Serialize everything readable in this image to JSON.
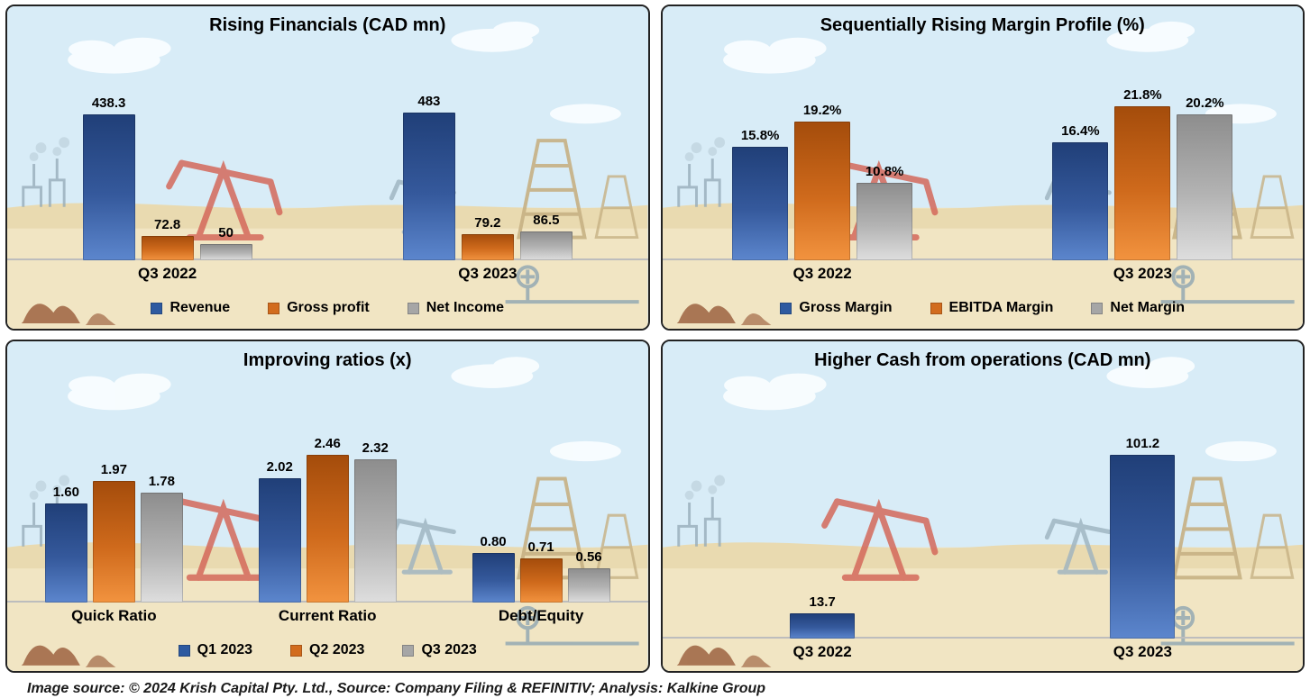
{
  "footer": {
    "text": "Image source: © 2024 Krish Capital Pty. Ltd., Source: Company Filing & REFINITIV; Analysis: Kalkine Group"
  },
  "palette": {
    "blue": {
      "top": "#203f78",
      "mid": "#35599c",
      "bottom": "#5c86cd",
      "legend": "#2e5aa0"
    },
    "orange": {
      "top": "#a44c0b",
      "mid": "#cf6a1c",
      "bottom": "#f2933f",
      "legend": "#d26c1e"
    },
    "gray": {
      "top": "#8d8d8d",
      "mid": "#b3b3b3",
      "bottom": "#dedede",
      "legend": "#a6a6a6"
    }
  },
  "chart_data": [
    {
      "id": "rising-financials",
      "type": "bar",
      "title": "Rising Financials (CAD mn)",
      "categories": [
        "Q3 2022",
        "Q3 2023"
      ],
      "series": [
        {
          "name": "Revenue",
          "color": "blue",
          "values": [
            438.3,
            483
          ],
          "labels": [
            "438.3",
            "483"
          ]
        },
        {
          "name": "Gross profit",
          "color": "orange",
          "values": [
            72.8,
            79.2
          ],
          "labels": [
            "72.8",
            "79.2"
          ]
        },
        {
          "name": "Net Income",
          "color": "gray",
          "values": [
            50,
            86.5
          ],
          "labels": [
            "50",
            "86.5"
          ]
        }
      ],
      "ylim": [
        0,
        500
      ],
      "grid": false,
      "legend_position": "bottom"
    },
    {
      "id": "margin-profile",
      "type": "bar",
      "title": "Sequentially Rising Margin Profile (%)",
      "categories": [
        "Q3 2022",
        "Q3 2023"
      ],
      "series": [
        {
          "name": "Gross Margin",
          "color": "blue",
          "values": [
            15.8,
            16.4
          ],
          "labels": [
            "15.8%",
            "16.4%"
          ]
        },
        {
          "name": "EBITDA Margin",
          "color": "orange",
          "values": [
            19.2,
            21.8
          ],
          "labels": [
            "19.2%",
            "21.8%"
          ]
        },
        {
          "name": "Net Margin",
          "color": "gray",
          "values": [
            10.8,
            20.2
          ],
          "labels": [
            "10.8%",
            "20.2%"
          ]
        }
      ],
      "ylim": [
        0,
        24
      ],
      "grid": false,
      "legend_position": "bottom"
    },
    {
      "id": "improving-ratios",
      "type": "bar",
      "title": "Improving ratios (x)",
      "categories": [
        "Quick Ratio",
        "Current Ratio",
        "Debt/Equity"
      ],
      "series": [
        {
          "name": "Q1 2023",
          "color": "blue",
          "values": [
            1.6,
            2.02,
            0.8
          ],
          "labels": [
            "1.60",
            "2.02",
            "0.80"
          ]
        },
        {
          "name": "Q2 2023",
          "color": "orange",
          "values": [
            1.97,
            2.46,
            0.71
          ],
          "labels": [
            "1.97",
            "2.46",
            "0.71"
          ]
        },
        {
          "name": "Q3 2023",
          "color": "gray",
          "values": [
            1.78,
            2.32,
            0.56
          ],
          "labels": [
            "1.78",
            "2.32",
            "0.56"
          ]
        }
      ],
      "ylim": [
        0,
        2.7
      ],
      "grid": false,
      "legend_position": "bottom"
    },
    {
      "id": "cash-from-operations",
      "type": "bar",
      "title": "Higher Cash from operations (CAD mn)",
      "categories": [
        "Q3 2022",
        "Q3 2023"
      ],
      "series": [
        {
          "name": "Cash from operations",
          "color": "blue",
          "values": [
            13.7,
            101.2
          ],
          "labels": [
            "13.7",
            "101.2"
          ]
        }
      ],
      "ylim": [
        0,
        110
      ],
      "grid": false,
      "legend_position": "none"
    }
  ]
}
